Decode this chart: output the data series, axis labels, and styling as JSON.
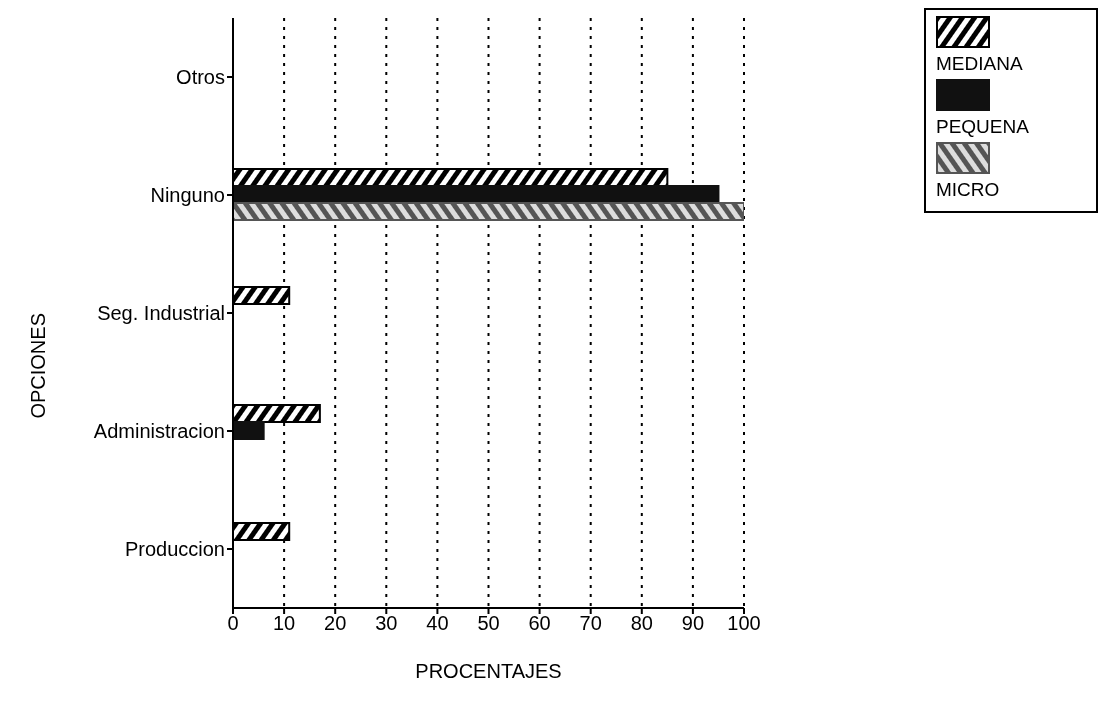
{
  "chart_data": {
    "type": "bar",
    "orientation": "horizontal",
    "xlabel": "PROCENTAJES",
    "ylabel": "OPCIONES",
    "categories": [
      "Otros",
      "Ninguno",
      "Seg. Industrial",
      "Administracion",
      "Produccion"
    ],
    "series": [
      {
        "name": "MEDIANA",
        "color": "#000000",
        "values": [
          0,
          85,
          11,
          17,
          11
        ]
      },
      {
        "name": "PEQUENA",
        "color": "#111111",
        "values": [
          0,
          95,
          0,
          6,
          0
        ]
      },
      {
        "name": "MICRO",
        "color": "#555555",
        "values": [
          0,
          100,
          0,
          0,
          0
        ]
      }
    ],
    "xlim": [
      0,
      100
    ],
    "xticks": [
      0,
      10,
      20,
      30,
      40,
      50,
      60,
      70,
      80,
      90,
      100
    ],
    "grid": "x",
    "legend": "top right"
  }
}
